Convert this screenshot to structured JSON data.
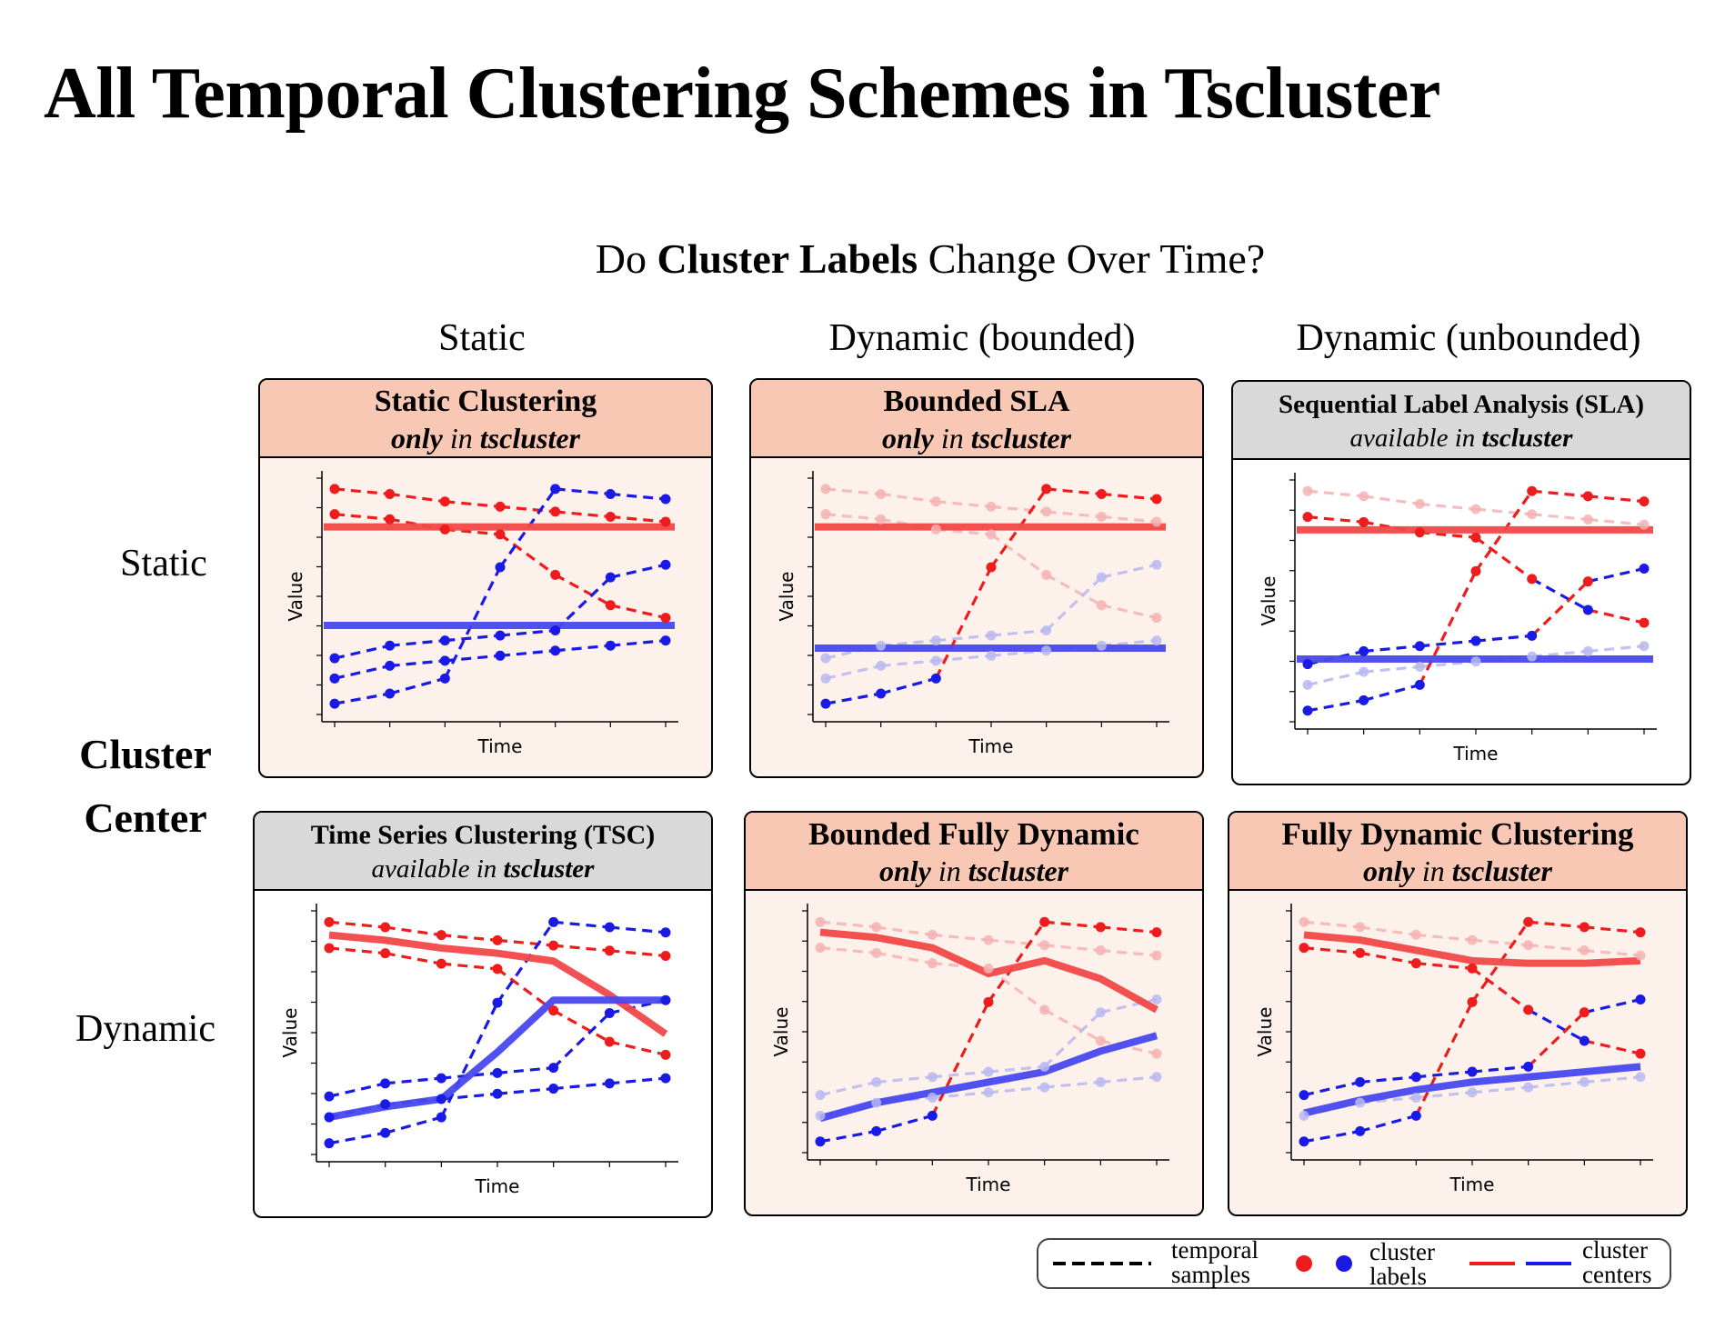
{
  "title": "All Temporal Clustering Schemes in Tscluster",
  "question": {
    "pre": "Do ",
    "bold": "Cluster Labels",
    "post": " Change Over Time?"
  },
  "columns": [
    "Static",
    "Dynamic (bounded)",
    "Dynamic (unbounded)"
  ],
  "rows": [
    "Static",
    "Dynamic"
  ],
  "center_label": {
    "line1": "Cluster",
    "line2": "Center"
  },
  "panels": [
    {
      "title": "Static Clustering",
      "sub_a": "only",
      "sub_b": " in ",
      "sub_c": "tscluster",
      "kind": "only"
    },
    {
      "title": "Bounded SLA",
      "sub_a": "only",
      "sub_b": " in ",
      "sub_c": "tscluster",
      "kind": "only"
    },
    {
      "title": "Sequential Label Analysis (SLA)",
      "sub_a": "available in ",
      "sub_b": "",
      "sub_c": "tscluster",
      "kind": "avail"
    },
    {
      "title": "Time Series Clustering (TSC)",
      "sub_a": "available in ",
      "sub_b": "",
      "sub_c": "tscluster",
      "kind": "avail"
    },
    {
      "title": "Bounded Fully Dynamic",
      "sub_a": "only",
      "sub_b": " in ",
      "sub_c": "tscluster",
      "kind": "only"
    },
    {
      "title": "Fully Dynamic Clustering",
      "sub_a": "only",
      "sub_b": " in ",
      "sub_c": "tscluster",
      "kind": "only"
    }
  ],
  "axis": {
    "xlabel": "Time",
    "ylabel": "Value"
  },
  "legend": {
    "samples_l1": "temporal",
    "samples_l2": "samples",
    "labels_l1": "cluster",
    "labels_l2": "labels",
    "centers_l1": "cluster",
    "centers_l2": "centers"
  },
  "colors": {
    "red": "#ee1c1c",
    "blue": "#1a1ae6",
    "red_center": "#f24848",
    "blue_center": "#4848f0",
    "only_bg": "#fdf1ec",
    "only_hdr": "#f8c8b4",
    "avail_hdr": "#d9d9d9"
  },
  "samples": [
    [
      10.0,
      9.8,
      9.5,
      9.3,
      9.1,
      8.9,
      8.7
    ],
    [
      9.0,
      8.8,
      8.4,
      8.2,
      6.6,
      5.4,
      4.9
    ],
    [
      3.3,
      3.8,
      4.0,
      4.2,
      4.4,
      6.5,
      7.0
    ],
    [
      2.5,
      3.0,
      3.2,
      3.4,
      3.6,
      3.8,
      4.0
    ],
    [
      1.5,
      1.9,
      2.5,
      6.9,
      10.0,
      9.8,
      9.6
    ]
  ],
  "static_labels": [
    "red",
    "red",
    "blue",
    "blue",
    "blue"
  ],
  "chart_data": [
    {
      "type": "line",
      "panel": "Static Clustering",
      "ylim": [
        1,
        10.5
      ],
      "active": [
        [
          "red",
          "red",
          "red",
          "red",
          "red",
          "red",
          "red"
        ],
        [
          "red",
          "red",
          "red",
          "red",
          "red",
          "red",
          "red"
        ],
        [
          "blue",
          "blue",
          "blue",
          "blue",
          "blue",
          "blue",
          "blue"
        ],
        [
          "blue",
          "blue",
          "blue",
          "blue",
          "blue",
          "blue",
          "blue"
        ],
        [
          "blue",
          "blue",
          "blue",
          "blue",
          "blue",
          "blue",
          "blue"
        ]
      ],
      "centers": {
        "red": [
          8.5,
          8.5,
          8.5,
          8.5,
          8.5,
          8.5,
          8.5
        ],
        "blue": [
          4.6,
          4.6,
          4.6,
          4.6,
          4.6,
          4.6,
          4.6
        ]
      }
    },
    {
      "type": "line",
      "panel": "Bounded SLA",
      "ylim": [
        1,
        10.5
      ],
      "active": [
        [
          null,
          null,
          null,
          null,
          null,
          null,
          null
        ],
        [
          null,
          null,
          null,
          null,
          null,
          null,
          null
        ],
        [
          null,
          null,
          null,
          null,
          null,
          null,
          null
        ],
        [
          null,
          null,
          null,
          null,
          null,
          null,
          null
        ],
        [
          "blue",
          "blue",
          "blue",
          "red",
          "red",
          "red",
          "red"
        ]
      ],
      "centers": {
        "red": [
          8.5,
          8.5,
          8.5,
          8.5,
          8.5,
          8.5,
          8.5
        ],
        "blue": [
          3.7,
          3.7,
          3.7,
          3.7,
          3.7,
          3.7,
          3.7
        ]
      }
    },
    {
      "type": "line",
      "panel": "Sequential Label Analysis (SLA)",
      "ylim": [
        1,
        10.5
      ],
      "active": [
        [
          null,
          null,
          null,
          null,
          null,
          null,
          null
        ],
        [
          "red",
          "red",
          "red",
          "red",
          "red",
          "blue",
          "red"
        ],
        [
          "blue",
          "blue",
          "blue",
          "blue",
          "blue",
          "red",
          "blue"
        ],
        [
          null,
          null,
          null,
          null,
          null,
          null,
          null
        ],
        [
          "blue",
          "blue",
          "blue",
          "red",
          "red",
          "red",
          "red"
        ]
      ],
      "centers": {
        "red": [
          8.5,
          8.5,
          8.5,
          8.5,
          8.5,
          8.5,
          8.5
        ],
        "blue": [
          3.5,
          3.5,
          3.5,
          3.5,
          3.5,
          3.5,
          3.5
        ]
      }
    },
    {
      "type": "line",
      "panel": "Time Series Clustering (TSC)",
      "ylim": [
        1,
        10.5
      ],
      "active": [
        [
          "red",
          "red",
          "red",
          "red",
          "red",
          "red",
          "red"
        ],
        [
          "red",
          "red",
          "red",
          "red",
          "red",
          "red",
          "red"
        ],
        [
          "blue",
          "blue",
          "blue",
          "blue",
          "blue",
          "blue",
          "blue"
        ],
        [
          "blue",
          "blue",
          "blue",
          "blue",
          "blue",
          "blue",
          "blue"
        ],
        [
          "blue",
          "blue",
          "blue",
          "blue",
          "blue",
          "blue",
          "blue"
        ]
      ],
      "centers": {
        "red": [
          9.5,
          9.3,
          9.0,
          8.8,
          8.5,
          7.2,
          5.7
        ],
        "blue": [
          2.5,
          2.9,
          3.2,
          5.0,
          7.0,
          7.0,
          7.0
        ]
      }
    },
    {
      "type": "line",
      "panel": "Bounded Fully Dynamic",
      "ylim": [
        1,
        10.5
      ],
      "active": [
        [
          null,
          null,
          null,
          null,
          null,
          null,
          null
        ],
        [
          null,
          null,
          null,
          null,
          null,
          null,
          null
        ],
        [
          null,
          null,
          null,
          null,
          null,
          null,
          null
        ],
        [
          null,
          null,
          null,
          null,
          null,
          null,
          null
        ],
        [
          "blue",
          "blue",
          "blue",
          "red",
          "red",
          "red",
          "red"
        ]
      ],
      "centers": {
        "red": [
          9.6,
          9.4,
          9.0,
          8.0,
          8.5,
          7.8,
          6.6
        ],
        "blue": [
          2.4,
          3.0,
          3.4,
          3.8,
          4.2,
          5.0,
          5.6
        ]
      }
    },
    {
      "type": "line",
      "panel": "Fully Dynamic Clustering",
      "ylim": [
        1,
        10.5
      ],
      "active": [
        [
          null,
          null,
          null,
          null,
          null,
          null,
          null
        ],
        [
          "red",
          "red",
          "red",
          "red",
          "red",
          "blue",
          "red"
        ],
        [
          "blue",
          "blue",
          "blue",
          "blue",
          "blue",
          "red",
          "blue"
        ],
        [
          null,
          null,
          null,
          null,
          null,
          null,
          null
        ],
        [
          "blue",
          "blue",
          "blue",
          "red",
          "red",
          "red",
          "red"
        ]
      ],
      "centers": {
        "red": [
          9.5,
          9.3,
          8.9,
          8.5,
          8.4,
          8.4,
          8.5
        ],
        "blue": [
          2.6,
          3.1,
          3.5,
          3.8,
          4.0,
          4.2,
          4.4
        ]
      }
    }
  ]
}
